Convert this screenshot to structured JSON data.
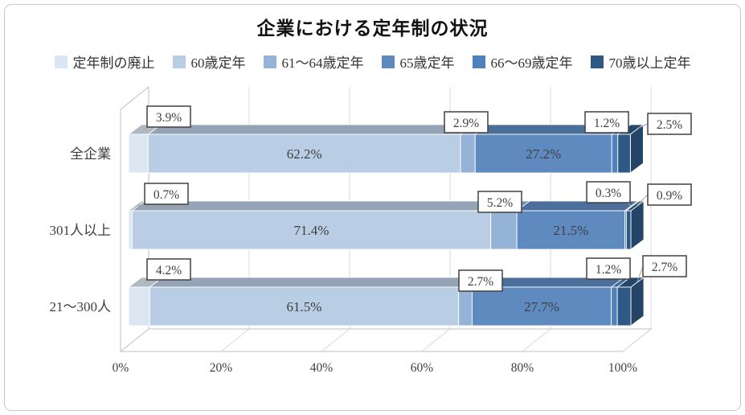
{
  "title": "企業における定年制の状況",
  "chart_data": {
    "type": "bar",
    "stacked": true,
    "orientation": "horizontal",
    "style": "3d",
    "title": "企業における定年制の状況",
    "categories": [
      "全企業",
      "301人以上",
      "21～300人"
    ],
    "series": [
      {
        "name": "定年制の廃止",
        "color": "#dce6f2",
        "values": [
          3.9,
          0.7,
          4.2
        ]
      },
      {
        "name": "60歳定年",
        "color": "#b9cde4",
        "values": [
          62.2,
          71.4,
          61.5
        ]
      },
      {
        "name": "61～64歳定年",
        "color": "#95b3d7",
        "values": [
          2.9,
          5.2,
          2.7
        ]
      },
      {
        "name": "65歳定年",
        "color": "#5f8ac0",
        "values": [
          27.2,
          21.5,
          27.7
        ]
      },
      {
        "name": "66～69歳定年",
        "color": "#4f81bd",
        "values": [
          1.2,
          0.3,
          1.2
        ]
      },
      {
        "name": "70歳以上定年",
        "color": "#2e5984",
        "values": [
          2.5,
          0.9,
          2.7
        ]
      }
    ],
    "x_axis": {
      "ticks": [
        "0%",
        "20%",
        "40%",
        "60%",
        "80%",
        "100%"
      ],
      "range": [
        0,
        100
      ]
    },
    "legend_position": "top",
    "grid": true,
    "colors": {
      "gridline": "#d9d9d9",
      "axis_line": "#bfbfbf",
      "leader_line": "#a6a6a6",
      "label_text": "#3f3f3f",
      "callout_border": "#404040",
      "callout_fill": "#ffffff"
    }
  }
}
